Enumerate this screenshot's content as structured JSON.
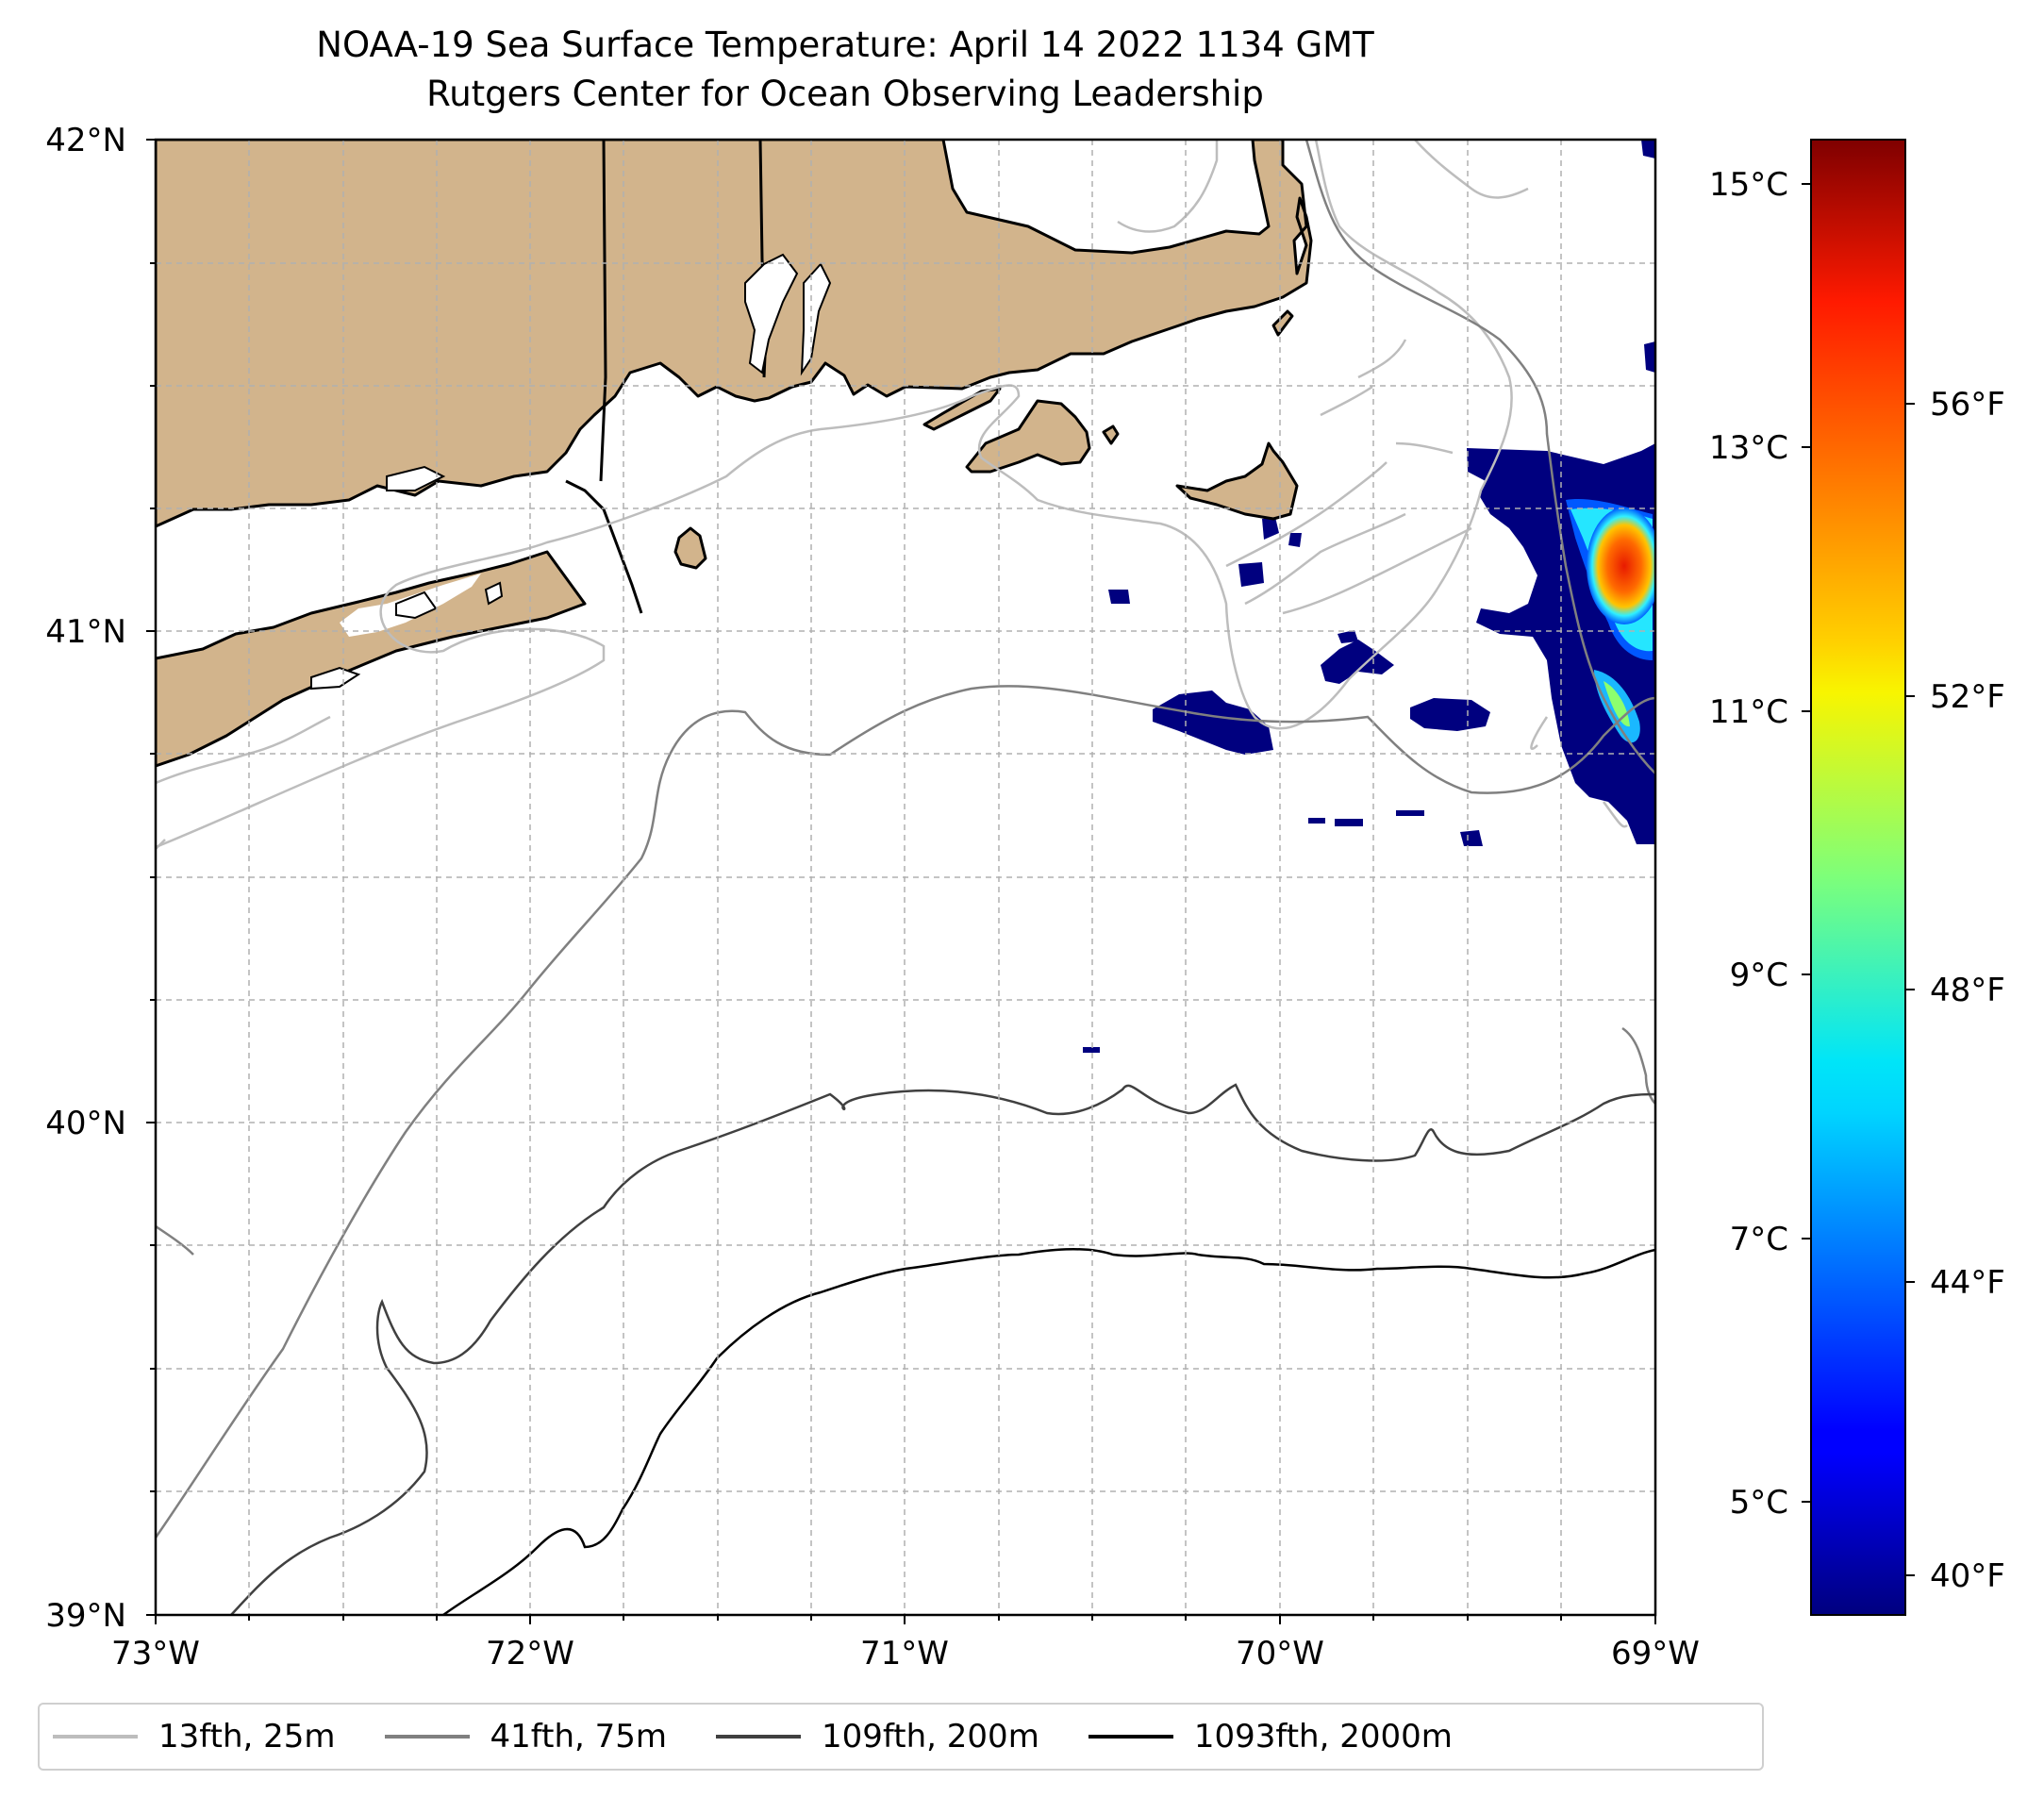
{
  "title": {
    "line1": "NOAA-19 Sea Surface Temperature: April 14 2022 1134 GMT",
    "line2": "Rutgers Center for Ocean Observing Leadership"
  },
  "map": {
    "lon_ticks": [
      "73°W",
      "72°W",
      "71°W",
      "70°W",
      "69°W"
    ],
    "lat_ticks": [
      "42°N",
      "41°N",
      "40°N",
      "39°N"
    ],
    "lon_range": [
      -73,
      -69
    ],
    "lat_range": [
      39,
      42
    ],
    "land_color": "#d2b48c",
    "grid": "dashed"
  },
  "colorbar": {
    "celsius_ticks": [
      "15°C",
      "13°C",
      "11°C",
      "9°C",
      "7°C",
      "5°C"
    ],
    "fahrenheit_ticks": [
      "56°F",
      "52°F",
      "48°F",
      "44°F",
      "40°F"
    ],
    "colormap": "jet",
    "range_c": [
      4.3,
      15.6
    ]
  },
  "legend": {
    "items": [
      {
        "label": "13fth, 25m",
        "color": "#bdbdbd"
      },
      {
        "label": "41fth, 75m",
        "color": "#808080"
      },
      {
        "label": "109fth, 200m",
        "color": "#404040"
      },
      {
        "label": "1093fth, 2000m",
        "color": "#000000"
      }
    ]
  }
}
